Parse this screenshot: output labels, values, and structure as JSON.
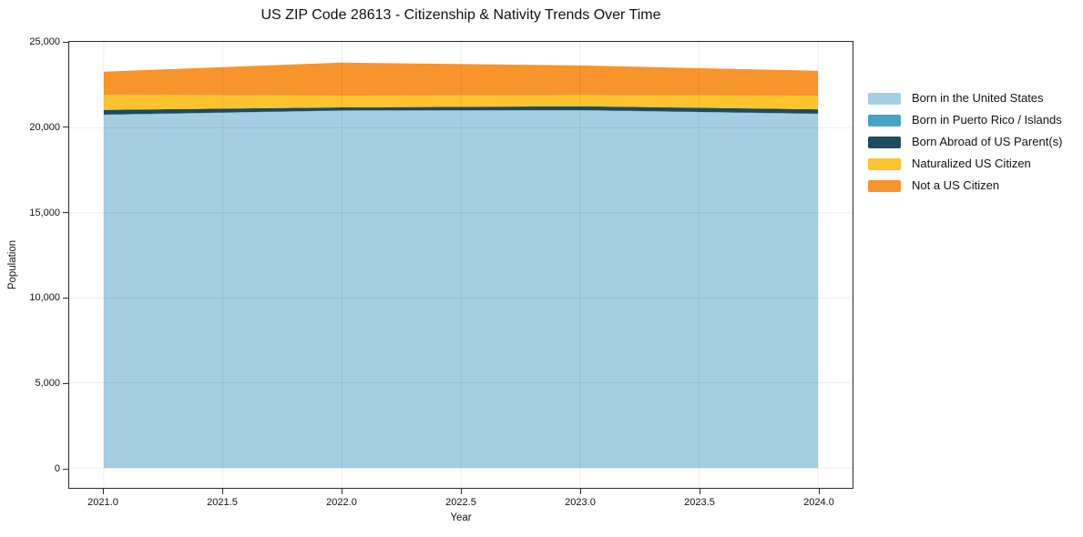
{
  "chart_data": {
    "type": "area",
    "stacked": true,
    "title": "US ZIP Code 28613 - Citizenship & Nativity Trends Over Time",
    "xlabel": "Year",
    "ylabel": "Population",
    "x": [
      2021,
      2022,
      2023,
      2024
    ],
    "series": [
      {
        "name": "Born in the United States",
        "color": "#A5CEE3",
        "values": [
          20750,
          21000,
          21020,
          20810
        ]
      },
      {
        "name": "Born in Puerto Rico / Islands",
        "color": "#45A5C5",
        "values": [
          30,
          20,
          20,
          20
        ]
      },
      {
        "name": "Born Abroad of US Parent(s)",
        "color": "#1D4B5F",
        "values": [
          270,
          180,
          230,
          260
        ]
      },
      {
        "name": "Naturalized US Citizen",
        "color": "#FCC32E",
        "values": [
          900,
          690,
          660,
          800
        ]
      },
      {
        "name": "Not a US Citizen",
        "color": "#F7942B",
        "values": [
          1350,
          1940,
          1740,
          1460
        ]
      }
    ],
    "totals": [
      23300,
      23830,
      23670,
      23350
    ],
    "xlim": [
      2020.855,
      2024.145
    ],
    "ylim": [
      -1173,
      25053
    ],
    "xticks": [
      {
        "value": 2021.0,
        "label": "2021.0"
      },
      {
        "value": 2021.5,
        "label": "2021.5"
      },
      {
        "value": 2022.0,
        "label": "2022.0"
      },
      {
        "value": 2022.5,
        "label": "2022.5"
      },
      {
        "value": 2023.0,
        "label": "2023.0"
      },
      {
        "value": 2023.5,
        "label": "2023.5"
      },
      {
        "value": 2024.0,
        "label": "2024.0"
      }
    ],
    "yticks": [
      {
        "value": 0,
        "label": "0"
      },
      {
        "value": 5000,
        "label": "5,000"
      },
      {
        "value": 10000,
        "label": "10,000"
      },
      {
        "value": 15000,
        "label": "15,000"
      },
      {
        "value": 20000,
        "label": "20,000"
      },
      {
        "value": 25000,
        "label": "25,000"
      }
    ],
    "grid": true,
    "grid_color": "rgba(0,0,0,0.07)",
    "spine_color": "#2b2b2b",
    "legend_position": "right-outside",
    "background": "#ffffff"
  }
}
